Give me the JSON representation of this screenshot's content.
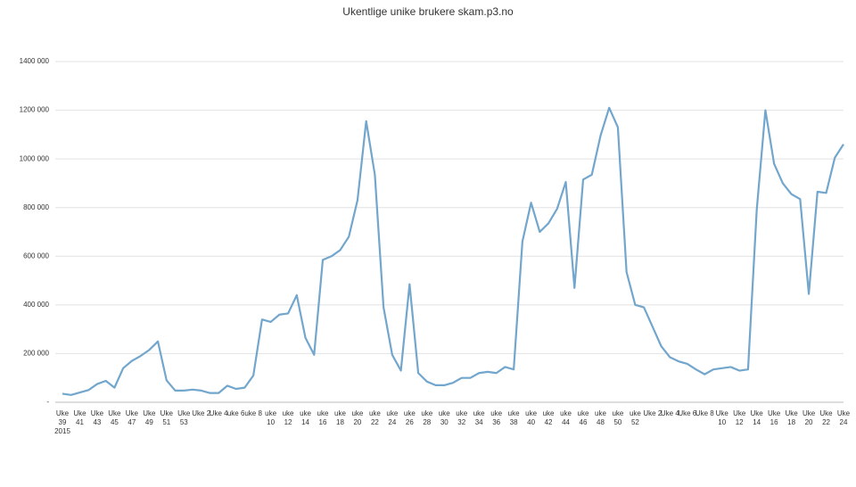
{
  "chart_data": {
    "type": "line",
    "title": "Ukentlige unike brukere skam.p3.no",
    "categories": [
      "Uke 39 2015",
      null,
      "Uke 41",
      null,
      "Uke 43",
      null,
      "Uke 45",
      null,
      "Uke 47",
      null,
      "Uke 49",
      null,
      "Uke 51",
      null,
      "Uke 53",
      null,
      "Uke 2",
      null,
      "Uke 4",
      null,
      "uke 6",
      null,
      "uke 8",
      null,
      "uke 10",
      null,
      "uke 12",
      null,
      "uke 14",
      null,
      "uke 16",
      null,
      "uke 18",
      null,
      "uke 20",
      null,
      "uke 22",
      null,
      "uke 24",
      null,
      "uke 26",
      null,
      "uke 28",
      null,
      "uke 30",
      null,
      "uke 32",
      null,
      "uke 34",
      null,
      "uke 36",
      null,
      "uke 38",
      null,
      "uke 40",
      null,
      "uke 42",
      null,
      "uke 44",
      null,
      "uke 46",
      null,
      "uke 48",
      null,
      "uke 50",
      null,
      "uke 52",
      null,
      "Uke 2",
      null,
      "Uke 4",
      null,
      "Uke 6",
      null,
      "Uke 8",
      null,
      "Uke 10",
      null,
      "Uke 12",
      null,
      "Uke 14",
      null,
      "Uke 16",
      null,
      "Uke 18",
      null,
      "Uke 20",
      null,
      "Uke 22",
      null,
      "Uke 24"
    ],
    "values": [
      35000,
      30000,
      40000,
      50000,
      75000,
      88000,
      60000,
      140000,
      170000,
      190000,
      215000,
      250000,
      90000,
      48000,
      48000,
      52000,
      48000,
      38000,
      38000,
      68000,
      55000,
      60000,
      110000,
      340000,
      330000,
      360000,
      365000,
      440000,
      265000,
      195000,
      585000,
      600000,
      625000,
      680000,
      830000,
      1155000,
      935000,
      390000,
      195000,
      130000,
      485000,
      120000,
      85000,
      70000,
      70000,
      80000,
      100000,
      100000,
      120000,
      125000,
      120000,
      145000,
      135000,
      660000,
      820000,
      700000,
      735000,
      795000,
      905000,
      470000,
      915000,
      935000,
      1095000,
      1210000,
      1130000,
      535000,
      400000,
      390000,
      310000,
      230000,
      185000,
      168000,
      158000,
      135000,
      115000,
      135000,
      140000,
      145000,
      130000,
      135000,
      790000,
      1200000,
      980000,
      900000,
      855000,
      835000,
      445000,
      865000,
      860000,
      1005000,
      1060000
    ],
    "color": "#72a6cc",
    "ylim": [
      0,
      1400000
    ],
    "yticks": [
      {
        "value": 0,
        "label": "-"
      },
      {
        "value": 200000,
        "label": "200 000"
      },
      {
        "value": 400000,
        "label": "400 000"
      },
      {
        "value": 600000,
        "label": "600 000"
      },
      {
        "value": 800000,
        "label": "800 000"
      },
      {
        "value": 1000000,
        "label": "1000 000"
      },
      {
        "value": 1200000,
        "label": "1200 000"
      },
      {
        "value": 1400000,
        "label": "1400 000"
      }
    ],
    "grid": true
  }
}
